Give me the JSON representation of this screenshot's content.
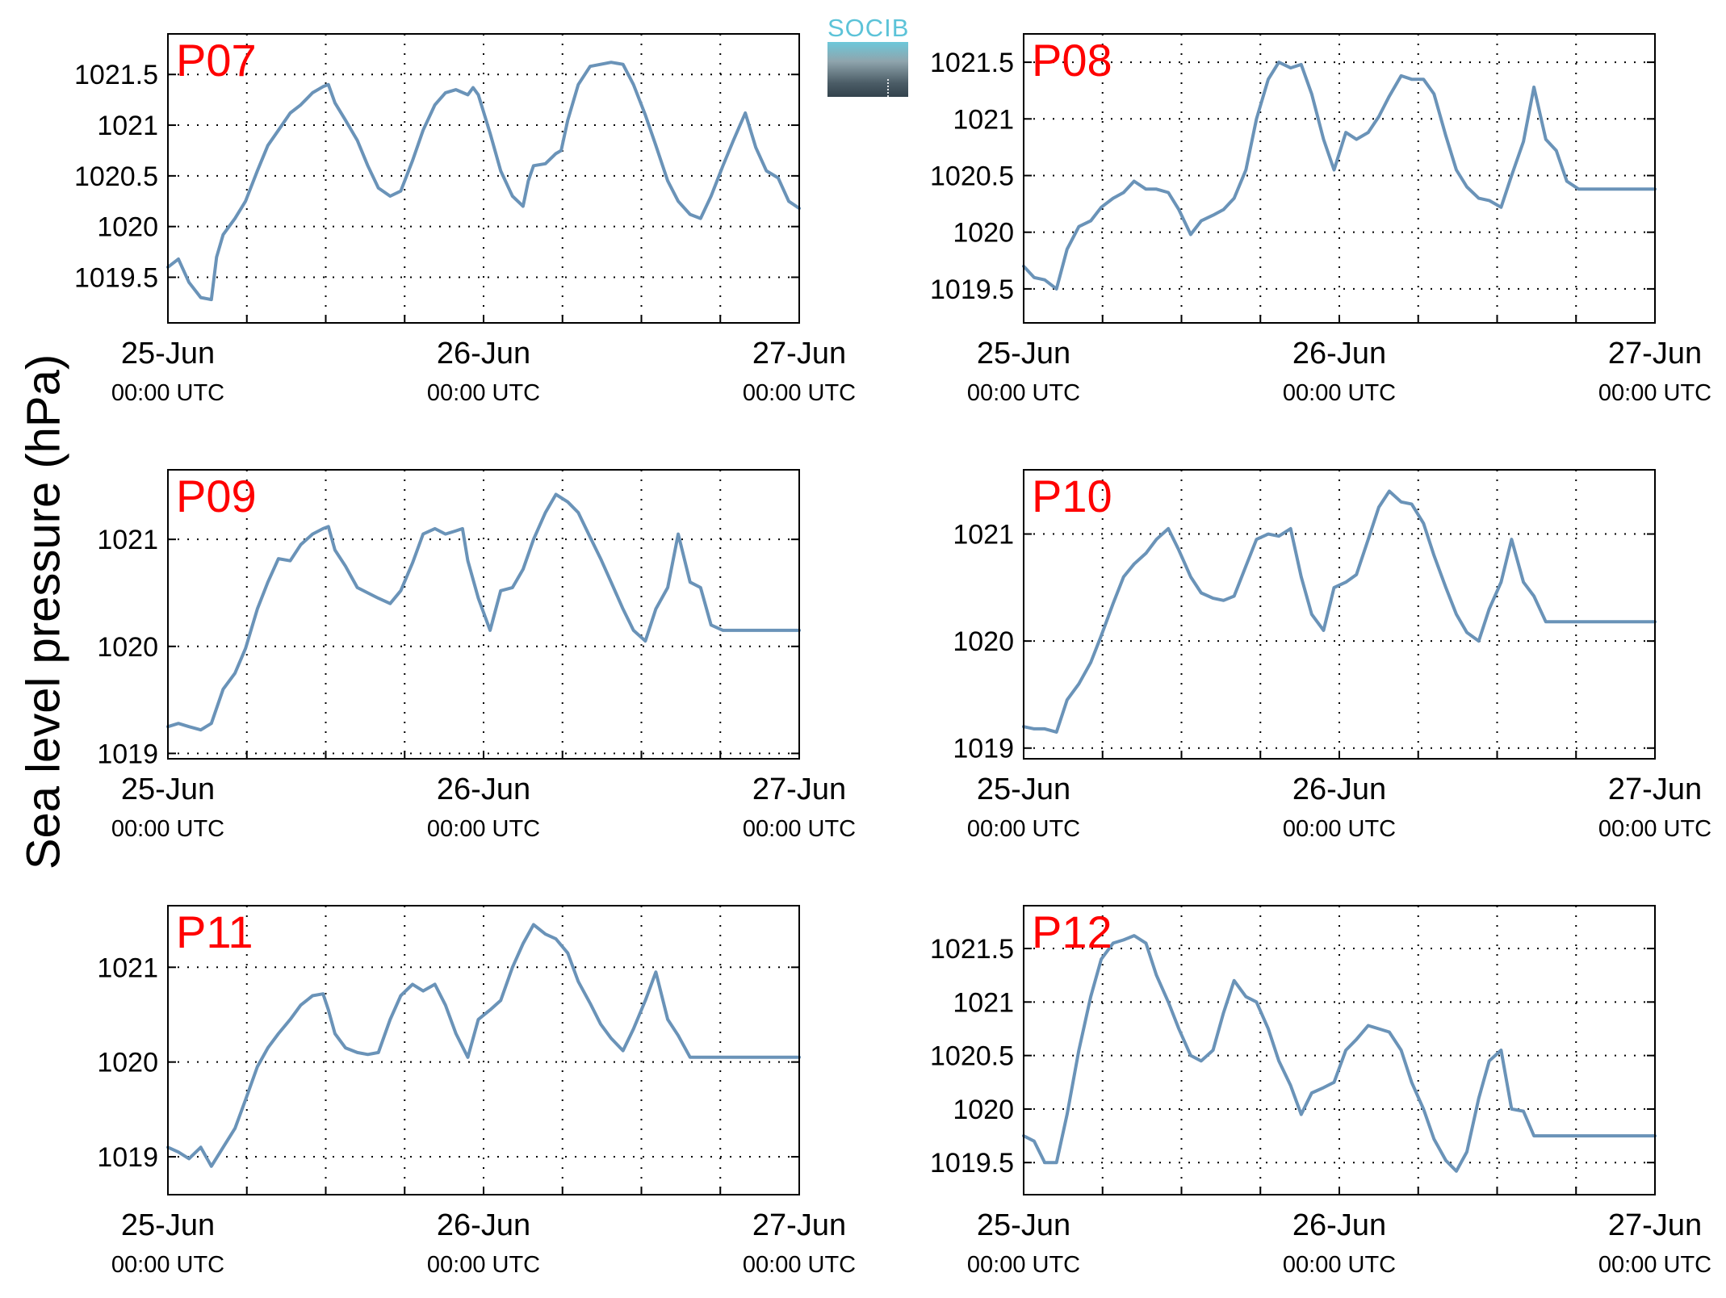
{
  "figure": {
    "ylabel": "Sea level pressure (hPa)",
    "logo_text": "SOCIB",
    "line_color": "#6a93b8",
    "station_label_color": "#ff0000"
  },
  "chart_data": [
    {
      "type": "line",
      "title": "P07",
      "x_ticks": [
        "25-Jun",
        "26-Jun",
        "27-Jun"
      ],
      "x_tick_sublabels": [
        "00:00 UTC",
        "00:00 UTC",
        "00:00 UTC"
      ],
      "x_range_hours": [
        0,
        48
      ],
      "ylim": [
        1019.05,
        1021.9
      ],
      "y_ticks": [
        1019.5,
        1020,
        1020.5,
        1021,
        1021.5
      ],
      "y_tick_labels": [
        "1019.5",
        "1020",
        "1020.5",
        "1021",
        "1021.5"
      ],
      "grid": true,
      "series": [
        {
          "x": [
            0,
            0.8,
            1.6,
            2.5,
            3.3,
            3.7,
            4.2,
            5.1,
            5.9,
            6.8,
            7.6,
            8.4,
            9.3,
            10.1,
            11,
            11.8,
            12.2,
            12.7,
            13.5,
            14.4,
            15.2,
            16,
            16.9,
            17.7,
            18.6,
            19.4,
            20.3,
            21.1,
            21.9,
            22.8,
            23.2,
            23.6,
            24.5,
            25.3,
            26.2,
            27,
            27.4,
            27.8,
            28.7,
            29.5,
            29.9,
            30.4,
            31.2,
            32.1,
            32.9,
            33.7,
            34.6,
            35.4,
            36.3,
            37.1,
            38,
            38.8,
            39.7,
            40.5,
            41.3,
            42.2,
            43,
            43.9,
            44.7,
            45.5,
            46.4,
            47.2,
            48
          ],
          "y": [
            1019.6,
            1019.68,
            1019.45,
            1019.3,
            1019.28,
            1019.7,
            1019.92,
            1020.08,
            1020.25,
            1020.55,
            1020.8,
            1020.95,
            1021.12,
            1021.2,
            1021.32,
            1021.38,
            1021.4,
            1021.22,
            1021.05,
            1020.85,
            1020.6,
            1020.38,
            1020.3,
            1020.35,
            1020.65,
            1020.95,
            1021.2,
            1021.32,
            1021.35,
            1021.3,
            1021.37,
            1021.3,
            1020.92,
            1020.55,
            1020.3,
            1020.2,
            1020.45,
            1020.6,
            1020.62,
            1020.72,
            1020.75,
            1021.05,
            1021.4,
            1021.58,
            1021.6,
            1021.62,
            1021.6,
            1021.4,
            1021.1,
            1020.8,
            1020.45,
            1020.25,
            1020.12,
            1020.08,
            1020.3,
            1020.6,
            1020.85,
            1021.12,
            1020.78,
            1020.55,
            1020.48,
            1020.25,
            1020.18
          ]
        }
      ]
    },
    {
      "type": "line",
      "title": "P08",
      "x_ticks": [
        "25-Jun",
        "26-Jun",
        "27-Jun"
      ],
      "x_tick_sublabels": [
        "00:00 UTC",
        "00:00 UTC",
        "00:00 UTC"
      ],
      "x_range_hours": [
        0,
        48
      ],
      "ylim": [
        1019.2,
        1021.75
      ],
      "y_ticks": [
        1019.5,
        1020,
        1020.5,
        1021,
        1021.5
      ],
      "y_tick_labels": [
        "1019.5",
        "1020",
        "1020.5",
        "1021",
        "1021.5"
      ],
      "grid": true,
      "series": [
        {
          "x": [
            0,
            0.8,
            1.6,
            2.5,
            3.3,
            4.2,
            5.1,
            5.9,
            6.8,
            7.6,
            8.4,
            9.3,
            10.1,
            11,
            11.8,
            12.7,
            13.5,
            14.4,
            15.2,
            16,
            16.9,
            17.7,
            18.6,
            19.4,
            20.3,
            21.1,
            21.9,
            22.8,
            23.6,
            24.5,
            25.3,
            26.2,
            27,
            27.8,
            28.7,
            29.5,
            30.4,
            31.2,
            32.1,
            32.9,
            33.7,
            34.6,
            35.4,
            36.3,
            37.1,
            38,
            38.8,
            39.7,
            40.5,
            41.3,
            42.2,
            43,
            43.9,
            44.7,
            45.5,
            46.4,
            47.2,
            48
          ],
          "y": [
            1019.7,
            1019.6,
            1019.58,
            1019.5,
            1019.85,
            1020.05,
            1020.1,
            1020.22,
            1020.3,
            1020.35,
            1020.45,
            1020.38,
            1020.38,
            1020.35,
            1020.2,
            1019.98,
            1020.1,
            1020.15,
            1020.2,
            1020.3,
            1020.55,
            1021.0,
            1021.35,
            1021.5,
            1021.45,
            1021.48,
            1021.22,
            1020.82,
            1020.55,
            1020.88,
            1020.82,
            1020.88,
            1021.02,
            1021.2,
            1021.38,
            1021.35,
            1021.35,
            1021.22,
            1020.85,
            1020.55,
            1020.4,
            1020.3,
            1020.28,
            1020.22,
            1020.5,
            1020.8,
            1021.28,
            1020.82,
            1020.72,
            1020.45,
            1020.38,
            1020.38,
            1020.38,
            1020.38,
            1020.38,
            1020.38,
            1020.38,
            1020.38
          ]
        }
      ]
    },
    {
      "type": "line",
      "title": "P09",
      "x_ticks": [
        "25-Jun",
        "26-Jun",
        "27-Jun"
      ],
      "x_tick_sublabels": [
        "00:00 UTC",
        "00:00 UTC",
        "00:00 UTC"
      ],
      "x_range_hours": [
        0,
        48
      ],
      "ylim": [
        1018.95,
        1021.65
      ],
      "y_ticks": [
        1019,
        1020,
        1021
      ],
      "y_tick_labels": [
        "1019",
        "1020",
        "1021"
      ],
      "grid": true,
      "series": [
        {
          "x": [
            0,
            0.8,
            1.6,
            2.5,
            3.3,
            4.2,
            5.1,
            5.9,
            6.8,
            7.6,
            8.4,
            9.3,
            10.1,
            11,
            11.8,
            12.2,
            12.7,
            13.5,
            14.4,
            15.2,
            16,
            16.9,
            17.7,
            18.6,
            19.4,
            20.3,
            21.1,
            21.9,
            22.4,
            22.8,
            23.6,
            24.5,
            25.3,
            26.2,
            27,
            27.8,
            28.7,
            29.5,
            30.4,
            31.2,
            32.1,
            32.9,
            33.7,
            34.6,
            35.4,
            36.3,
            37.1,
            38,
            38.8,
            39.7,
            40.5,
            41.3,
            42.2,
            43,
            43.9,
            44.7,
            45.5,
            46.4,
            47.2,
            48
          ],
          "y": [
            1019.25,
            1019.28,
            1019.25,
            1019.22,
            1019.28,
            1019.6,
            1019.75,
            1019.98,
            1020.35,
            1020.6,
            1020.82,
            1020.8,
            1020.95,
            1021.05,
            1021.1,
            1021.12,
            1020.9,
            1020.75,
            1020.55,
            1020.5,
            1020.45,
            1020.4,
            1020.52,
            1020.78,
            1021.05,
            1021.1,
            1021.05,
            1021.08,
            1021.1,
            1020.8,
            1020.45,
            1020.15,
            1020.52,
            1020.55,
            1020.72,
            1021.0,
            1021.25,
            1021.42,
            1021.35,
            1021.25,
            1021.02,
            1020.82,
            1020.6,
            1020.35,
            1020.15,
            1020.05,
            1020.35,
            1020.55,
            1021.05,
            1020.6,
            1020.55,
            1020.2,
            1020.15,
            1020.15,
            1020.15,
            1020.15,
            1020.15,
            1020.15,
            1020.15,
            1020.15
          ]
        }
      ]
    },
    {
      "type": "line",
      "title": "P10",
      "x_ticks": [
        "25-Jun",
        "26-Jun",
        "27-Jun"
      ],
      "x_tick_sublabels": [
        "00:00 UTC",
        "00:00 UTC",
        "00:00 UTC"
      ],
      "x_range_hours": [
        0,
        48
      ],
      "ylim": [
        1018.9,
        1021.6
      ],
      "y_ticks": [
        1019,
        1020,
        1021
      ],
      "y_tick_labels": [
        "1019",
        "1020",
        "1021"
      ],
      "grid": true,
      "series": [
        {
          "x": [
            0,
            0.8,
            1.6,
            2.5,
            3.3,
            4.2,
            5.1,
            5.9,
            6.8,
            7.6,
            8.4,
            9.3,
            10.1,
            11,
            11.8,
            12.7,
            13.5,
            14.4,
            15.2,
            16,
            16.9,
            17.7,
            18.6,
            19.4,
            20.3,
            21.1,
            21.9,
            22.8,
            23.6,
            24.5,
            25.3,
            26.2,
            27,
            27.8,
            28.7,
            29.5,
            30.4,
            31.2,
            32.1,
            32.9,
            33.7,
            34.6,
            35.4,
            36.3,
            37.1,
            38,
            38.8,
            39.7,
            40.5,
            41.3,
            42.2,
            43,
            43.9,
            44.7,
            45.5,
            46.4,
            47.2,
            48
          ],
          "y": [
            1019.2,
            1019.18,
            1019.18,
            1019.15,
            1019.45,
            1019.6,
            1019.8,
            1020.05,
            1020.35,
            1020.6,
            1020.72,
            1020.82,
            1020.95,
            1021.05,
            1020.85,
            1020.6,
            1020.45,
            1020.4,
            1020.38,
            1020.42,
            1020.7,
            1020.95,
            1021.0,
            1020.98,
            1021.05,
            1020.6,
            1020.25,
            1020.1,
            1020.5,
            1020.55,
            1020.62,
            1020.95,
            1021.25,
            1021.4,
            1021.3,
            1021.28,
            1021.1,
            1020.8,
            1020.5,
            1020.25,
            1020.08,
            1020.0,
            1020.3,
            1020.55,
            1020.95,
            1020.55,
            1020.42,
            1020.18,
            1020.18,
            1020.18,
            1020.18,
            1020.18,
            1020.18,
            1020.18,
            1020.18,
            1020.18,
            1020.18,
            1020.18
          ]
        }
      ]
    },
    {
      "type": "line",
      "title": "P11",
      "x_ticks": [
        "25-Jun",
        "26-Jun",
        "27-Jun"
      ],
      "x_tick_sublabels": [
        "00:00 UTC",
        "00:00 UTC",
        "00:00 UTC"
      ],
      "x_range_hours": [
        0,
        48
      ],
      "ylim": [
        1018.6,
        1021.65
      ],
      "y_ticks": [
        1019,
        1020,
        1021
      ],
      "y_tick_labels": [
        "1019",
        "1020",
        "1021"
      ],
      "grid": true,
      "series": [
        {
          "x": [
            0,
            0.8,
            1.6,
            2.5,
            3.3,
            4.2,
            5.1,
            5.9,
            6.8,
            7.6,
            8.4,
            9.3,
            10.1,
            11,
            11.8,
            12.2,
            12.7,
            13.5,
            14.4,
            15.2,
            16,
            16.9,
            17.7,
            18.6,
            19.4,
            20.3,
            21.1,
            21.9,
            22.8,
            23.6,
            24.5,
            25.3,
            26.2,
            27,
            27.8,
            28.7,
            29.5,
            30.4,
            31.2,
            32.1,
            32.9,
            33.7,
            34.6,
            35.4,
            36.3,
            37.1,
            38,
            38.8,
            39.7,
            40.5,
            41.3,
            42.2,
            43,
            43.9,
            44.7,
            45.5,
            46.4,
            47.2,
            48
          ],
          "y": [
            1019.1,
            1019.05,
            1018.98,
            1019.1,
            1018.9,
            1019.1,
            1019.3,
            1019.6,
            1019.95,
            1020.15,
            1020.3,
            1020.45,
            1020.6,
            1020.7,
            1020.72,
            1020.55,
            1020.3,
            1020.15,
            1020.1,
            1020.08,
            1020.1,
            1020.45,
            1020.7,
            1020.82,
            1020.75,
            1020.82,
            1020.6,
            1020.3,
            1020.05,
            1020.45,
            1020.55,
            1020.65,
            1021.0,
            1021.25,
            1021.45,
            1021.35,
            1021.3,
            1021.15,
            1020.85,
            1020.62,
            1020.4,
            1020.25,
            1020.12,
            1020.35,
            1020.65,
            1020.95,
            1020.45,
            1020.28,
            1020.05,
            1020.05,
            1020.05,
            1020.05,
            1020.05,
            1020.05,
            1020.05,
            1020.05,
            1020.05,
            1020.05,
            1020.05
          ]
        }
      ]
    },
    {
      "type": "line",
      "title": "P12",
      "x_ticks": [
        "25-Jun",
        "26-Jun",
        "27-Jun"
      ],
      "x_tick_sublabels": [
        "00:00 UTC",
        "00:00 UTC",
        "00:00 UTC"
      ],
      "x_range_hours": [
        0,
        48
      ],
      "ylim": [
        1019.2,
        1021.9
      ],
      "y_ticks": [
        1019.5,
        1020,
        1020.5,
        1021,
        1021.5
      ],
      "y_tick_labels": [
        "1019.5",
        "1020",
        "1020.5",
        "1021",
        "1021.5"
      ],
      "grid": true,
      "series": [
        {
          "x": [
            0,
            0.8,
            1.6,
            2.5,
            3.3,
            4.2,
            5.1,
            5.9,
            6.8,
            7.6,
            8.4,
            9.3,
            10.1,
            11,
            11.8,
            12.7,
            13.5,
            14.4,
            15.2,
            16,
            16.9,
            17.7,
            18.6,
            19.4,
            20.3,
            21.1,
            21.9,
            22.8,
            23.6,
            24.5,
            25.3,
            26.2,
            27,
            27.8,
            28.7,
            29.5,
            30.4,
            31.2,
            32.1,
            32.9,
            33.7,
            34.6,
            35.4,
            36.3,
            37.1,
            38,
            38.8,
            39.7,
            40.5,
            41.3,
            42.2,
            43,
            43.9,
            44.7,
            45.5,
            46.4,
            47.2,
            48
          ],
          "y": [
            1019.75,
            1019.7,
            1019.5,
            1019.5,
            1019.95,
            1020.55,
            1021.05,
            1021.4,
            1021.55,
            1021.58,
            1021.62,
            1021.55,
            1021.25,
            1021.0,
            1020.75,
            1020.5,
            1020.45,
            1020.55,
            1020.9,
            1021.2,
            1021.05,
            1021.0,
            1020.75,
            1020.45,
            1020.22,
            1019.95,
            1020.15,
            1020.2,
            1020.25,
            1020.55,
            1020.65,
            1020.78,
            1020.75,
            1020.72,
            1020.55,
            1020.25,
            1020.0,
            1019.72,
            1019.52,
            1019.42,
            1019.6,
            1020.1,
            1020.45,
            1020.55,
            1020.0,
            1019.98,
            1019.75,
            1019.75,
            1019.75,
            1019.75,
            1019.75,
            1019.75,
            1019.75,
            1019.75,
            1019.75,
            1019.75,
            1019.75,
            1019.75
          ]
        }
      ]
    }
  ]
}
